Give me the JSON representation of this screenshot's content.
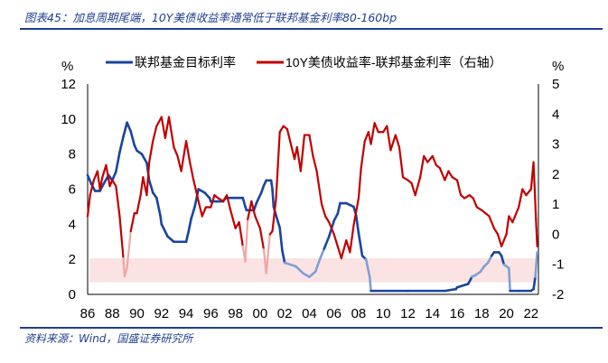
{
  "header": {
    "title": "图表45：加息周期尾端，10Y美债收益率通常低于联邦基金利率80-160bp"
  },
  "footer": {
    "source": "资料来源：Wind，国盛证券研究所"
  },
  "chart_data": {
    "type": "line",
    "left_unit": "%",
    "right_unit": "%",
    "ylim_left": [
      0,
      12
    ],
    "ylim_right": [
      -2,
      5
    ],
    "left_ticks": [
      0,
      2,
      4,
      6,
      8,
      10,
      12
    ],
    "right_ticks": [
      -2,
      -1,
      0,
      1,
      2,
      3,
      4,
      5
    ],
    "xlim": [
      1986,
      2022.6
    ],
    "x_ticks": [
      1986,
      1988,
      1990,
      1992,
      1994,
      1996,
      1998,
      2000,
      2002,
      2004,
      2006,
      2008,
      2010,
      2012,
      2014,
      2016,
      2018,
      2020,
      2022
    ],
    "x_tick_labels": [
      "86",
      "88",
      "90",
      "92",
      "94",
      "96",
      "98",
      "00",
      "02",
      "04",
      "06",
      "08",
      "10",
      "12",
      "14",
      "16",
      "18",
      "20",
      "22"
    ],
    "band": {
      "axis": "right",
      "range": [
        -1.6,
        -0.8
      ],
      "color": "#fbe3e3"
    },
    "legend_placement": "top",
    "colors": {
      "fed": "#1a44a0",
      "fed_light": "#7f9fd6",
      "spread": "#c00000",
      "spread_light": "#f0a6a6"
    },
    "series": [
      {
        "name": "联邦基金目标利率",
        "axis": "left",
        "x": [
          1986.0,
          1986.3,
          1986.6,
          1987.0,
          1987.3,
          1987.7,
          1988.0,
          1988.3,
          1988.6,
          1988.9,
          1989.2,
          1989.5,
          1989.8,
          1990.0,
          1990.4,
          1990.8,
          1991.0,
          1991.3,
          1991.6,
          1991.9,
          1992.0,
          1992.5,
          1993.0,
          1993.5,
          1994.0,
          1994.2,
          1994.4,
          1994.7,
          1995.0,
          1995.5,
          1995.9,
          1996.0,
          1996.5,
          1997.0,
          1997.2,
          1998.0,
          1998.6,
          1998.8,
          1998.9,
          1999.5,
          1999.7,
          1999.9,
          2000.1,
          2000.3,
          2000.5,
          2000.9,
          2001.0,
          2001.1,
          2001.3,
          2001.6,
          2001.8,
          2002.0,
          2002.9,
          2003.5,
          2004.0,
          2004.5,
          2004.8,
          2005.2,
          2005.6,
          2006.0,
          2006.3,
          2006.5,
          2007.0,
          2007.6,
          2007.8,
          2008.0,
          2008.3,
          2008.6,
          2008.9,
          2009.0,
          2012.0,
          2015.0,
          2015.9,
          2016.0,
          2016.9,
          2017.2,
          2017.5,
          2017.9,
          2018.2,
          2018.5,
          2018.8,
          2019.0,
          2019.4,
          2019.6,
          2019.8,
          2020.2,
          2020.3,
          2021.0,
          2022.0,
          2022.2,
          2022.35,
          2022.5
        ],
        "values": [
          6.8,
          6.3,
          5.9,
          5.9,
          6.3,
          6.8,
          6.5,
          7.0,
          8.1,
          9.0,
          9.8,
          9.3,
          8.5,
          8.2,
          8.0,
          7.5,
          6.5,
          5.8,
          5.5,
          4.5,
          4.0,
          3.3,
          3.0,
          3.0,
          3.0,
          3.6,
          4.3,
          5.0,
          6.0,
          5.8,
          5.5,
          5.3,
          5.3,
          5.3,
          5.5,
          5.5,
          5.5,
          5.0,
          4.8,
          4.8,
          5.2,
          5.5,
          5.8,
          6.2,
          6.5,
          6.5,
          6.0,
          5.0,
          4.5,
          3.8,
          2.5,
          1.8,
          1.6,
          1.2,
          1.0,
          1.3,
          1.9,
          2.6,
          3.3,
          4.2,
          4.6,
          5.2,
          5.2,
          5.0,
          4.5,
          3.5,
          2.2,
          2.0,
          1.0,
          0.2,
          0.2,
          0.2,
          0.3,
          0.4,
          0.6,
          1.0,
          1.1,
          1.3,
          1.6,
          1.8,
          2.2,
          2.4,
          2.4,
          2.2,
          1.7,
          1.5,
          0.2,
          0.2,
          0.2,
          0.3,
          1.0,
          2.4
        ]
      },
      {
        "name": "10Y美债收益率-联邦基金利率（右轴）",
        "axis": "right",
        "x": [
          1986.0,
          1986.2,
          1986.5,
          1986.8,
          1987.0,
          1987.2,
          1987.5,
          1987.8,
          1988.0,
          1988.3,
          1988.6,
          1988.9,
          1989.0,
          1989.2,
          1989.5,
          1989.8,
          1990.0,
          1990.3,
          1990.5,
          1990.8,
          1991.0,
          1991.3,
          1991.6,
          1992.0,
          1992.3,
          1992.6,
          1993.0,
          1993.3,
          1993.6,
          1994.0,
          1994.3,
          1994.6,
          1995.0,
          1995.3,
          1995.6,
          1996.0,
          1996.3,
          1996.6,
          1997.0,
          1997.3,
          1997.6,
          1998.0,
          1998.3,
          1998.6,
          1998.8,
          1999.0,
          1999.3,
          1999.6,
          2000.0,
          2000.3,
          2000.5,
          2000.8,
          2001.0,
          2001.3,
          2001.6,
          2001.9,
          2002.2,
          2002.5,
          2002.8,
          2003.0,
          2003.3,
          2003.6,
          2004.0,
          2004.3,
          2004.6,
          2005.0,
          2005.3,
          2005.6,
          2006.0,
          2006.3,
          2006.6,
          2007.0,
          2007.3,
          2007.6,
          2008.0,
          2008.2,
          2008.5,
          2008.8,
          2009.0,
          2009.3,
          2009.6,
          2010.0,
          2010.3,
          2010.6,
          2011.0,
          2011.3,
          2011.6,
          2012.0,
          2012.3,
          2012.6,
          2013.0,
          2013.3,
          2013.6,
          2014.0,
          2014.3,
          2014.6,
          2015.0,
          2015.3,
          2015.6,
          2016.0,
          2016.3,
          2016.6,
          2017.0,
          2017.3,
          2017.6,
          2018.0,
          2018.3,
          2018.6,
          2019.0,
          2019.3,
          2019.6,
          2020.0,
          2020.2,
          2020.5,
          2020.8,
          2021.0,
          2021.3,
          2021.6,
          2022.0,
          2022.2,
          2022.4,
          2022.5
        ],
        "values": [
          0.6,
          1.3,
          1.8,
          2.1,
          1.5,
          1.9,
          2.3,
          1.6,
          1.8,
          1.6,
          0.6,
          -0.8,
          -1.4,
          -1.1,
          0.1,
          0.7,
          0.7,
          1.3,
          1.9,
          1.3,
          2.4,
          3.1,
          3.6,
          3.9,
          3.2,
          3.9,
          2.9,
          2.6,
          2.1,
          3.1,
          2.4,
          1.8,
          1.1,
          0.6,
          0.9,
          0.9,
          1.3,
          1.2,
          1.1,
          1.3,
          0.8,
          0.2,
          0.4,
          -0.4,
          -0.9,
          0.5,
          1.1,
          0.6,
          0.2,
          -0.5,
          -1.3,
          0.0,
          0.1,
          1.2,
          3.4,
          3.6,
          3.5,
          3.0,
          2.5,
          2.9,
          2.1,
          3.3,
          3.3,
          2.6,
          2.1,
          1.0,
          0.6,
          0.4,
          0.0,
          -0.4,
          -0.8,
          -0.2,
          -0.6,
          0.3,
          1.2,
          2.2,
          3.1,
          3.4,
          3.0,
          3.7,
          3.4,
          3.4,
          3.6,
          2.8,
          3.3,
          2.9,
          1.9,
          1.8,
          1.7,
          1.3,
          1.9,
          2.6,
          2.4,
          2.6,
          2.3,
          2.2,
          1.8,
          2.1,
          1.9,
          1.8,
          1.3,
          1.2,
          1.3,
          1.2,
          0.9,
          0.8,
          0.7,
          0.6,
          0.2,
          0.0,
          -0.4,
          0.0,
          0.6,
          0.4,
          0.7,
          0.9,
          1.5,
          1.3,
          1.5,
          2.4,
          0.5,
          -0.4
        ]
      }
    ]
  }
}
